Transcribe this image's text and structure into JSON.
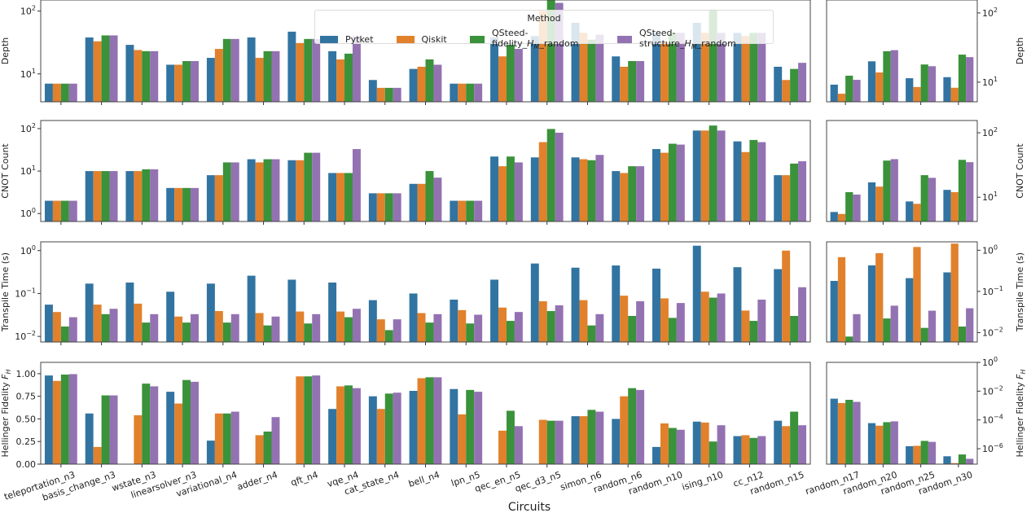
{
  "chart_data": {
    "type": "bar",
    "xlabel": "Circuits",
    "legend": {
      "title": "Method",
      "placement": "top-center"
    },
    "series_names": [
      "Pytket",
      "Qiskit",
      "QSteed-fidelity_H_M_random",
      "QSteed-structure_H_M_random"
    ],
    "colors": [
      "#3274a1",
      "#e1812c",
      "#3a923a",
      "#9372b2"
    ],
    "left_categories": [
      "teleportation_n3",
      "basis_change_n3",
      "wstate_n3",
      "linearsolver_n3",
      "variational_n4",
      "adder_n4",
      "qft_n4",
      "vqe_n4",
      "cat_state_n4",
      "bell_n4",
      "lpn_n5",
      "qec_en_n5",
      "qec_d3_n5",
      "simon_n6",
      "random_n6",
      "random_n10",
      "ising_n10",
      "cc_n12",
      "random_n15"
    ],
    "right_categories": [
      "random_n17",
      "random_n20",
      "random_n25",
      "random_n30"
    ],
    "panels": [
      {
        "metric": "Depth",
        "ylabel": "Depth",
        "scale": "log",
        "left_ylim": [
          3.6,
          150
        ],
        "right_ylim": [
          5.2,
          154
        ],
        "yticks": [
          {
            "v": 10,
            "base": "10",
            "exp": "1"
          },
          {
            "v": 100,
            "base": "10",
            "exp": "2"
          }
        ],
        "left": [
          [
            7,
            7,
            7,
            7
          ],
          [
            38,
            33,
            41,
            41
          ],
          [
            29,
            24,
            23,
            23
          ],
          [
            14,
            14,
            16,
            16
          ],
          [
            18,
            25,
            36,
            36
          ],
          [
            38,
            18,
            23,
            23
          ],
          [
            47,
            31,
            36,
            36
          ],
          [
            23,
            17,
            21,
            40
          ],
          [
            8,
            6,
            6,
            6
          ],
          [
            12,
            13,
            17,
            14
          ],
          [
            7,
            7,
            7,
            7
          ],
          [
            38,
            19,
            29,
            25
          ],
          [
            40,
            100,
            150,
            135
          ],
          [
            65,
            45,
            35,
            42
          ],
          [
            19,
            13,
            16,
            16
          ],
          [
            45,
            32,
            45,
            45
          ],
          [
            65,
            45,
            105,
            45
          ],
          [
            45,
            40,
            45,
            45
          ],
          [
            13,
            8,
            12,
            15
          ]
        ],
        "right": [
          [
            9.2,
            6.8,
            12.4,
            10.8
          ],
          [
            20,
            13.8,
            28,
            29
          ],
          [
            11.4,
            8.5,
            18,
            17
          ],
          [
            11.8,
            8.3,
            25,
            23
          ]
        ]
      },
      {
        "metric": "CNOT Count",
        "ylabel": "CNOT Count",
        "scale": "log",
        "left_ylim": [
          0.65,
          155
        ],
        "right_ylim": [
          4.2,
          155
        ],
        "yticks": [
          {
            "v": 1,
            "base": "10",
            "exp": "0"
          },
          {
            "v": 10,
            "base": "10",
            "exp": "1"
          },
          {
            "v": 100,
            "base": "10",
            "exp": "2"
          }
        ],
        "right_yticks": [
          {
            "v": 10,
            "base": "10",
            "exp": "1"
          },
          {
            "v": 100,
            "base": "10",
            "exp": "2"
          }
        ],
        "left": [
          [
            2,
            2,
            2,
            2
          ],
          [
            10,
            10,
            10,
            10
          ],
          [
            10,
            10,
            11,
            11
          ],
          [
            4,
            4,
            4,
            4
          ],
          [
            8,
            8,
            16,
            16
          ],
          [
            19,
            16,
            19,
            19
          ],
          [
            18,
            18,
            27,
            27
          ],
          [
            9,
            9,
            9,
            33
          ],
          [
            3,
            3,
            3,
            3
          ],
          [
            5,
            5,
            10,
            7
          ],
          [
            2,
            2,
            2,
            2
          ],
          [
            22,
            13,
            22,
            16
          ],
          [
            21,
            48,
            98,
            80
          ],
          [
            21,
            19,
            18,
            24
          ],
          [
            10,
            9,
            13,
            13
          ],
          [
            33,
            27,
            44,
            42
          ],
          [
            90,
            90,
            118,
            90
          ],
          [
            50,
            28,
            54,
            48
          ],
          [
            8,
            8,
            15,
            17
          ]
        ],
        "right": [
          [
            5.9,
            5.5,
            12,
            11
          ],
          [
            17,
            14.6,
            37,
            39
          ],
          [
            8.6,
            7.9,
            22,
            20
          ],
          [
            13,
            12,
            38,
            35
          ]
        ]
      },
      {
        "metric": "Transpile Time (s)",
        "ylabel": "Transpile Time (s)",
        "scale": "log",
        "left_ylim": [
          0.0074,
          1.6
        ],
        "right_ylim": [
          0.0059,
          1.6
        ],
        "yticks": [
          {
            "v": 0.01,
            "base": "10",
            "exp": "−2"
          },
          {
            "v": 0.1,
            "base": "10",
            "exp": "−1"
          },
          {
            "v": 1,
            "base": "10",
            "exp": "0"
          }
        ],
        "left": [
          [
            0.055,
            0.037,
            0.017,
            0.028
          ],
          [
            0.17,
            0.055,
            0.033,
            0.044
          ],
          [
            0.18,
            0.058,
            0.021,
            0.033
          ],
          [
            0.11,
            0.029,
            0.021,
            0.033
          ],
          [
            0.17,
            0.039,
            0.021,
            0.033
          ],
          [
            0.26,
            0.035,
            0.018,
            0.029
          ],
          [
            0.21,
            0.038,
            0.02,
            0.033
          ],
          [
            0.18,
            0.038,
            0.028,
            0.044
          ],
          [
            0.07,
            0.025,
            0.014,
            0.025
          ],
          [
            0.1,
            0.035,
            0.021,
            0.033
          ],
          [
            0.072,
            0.041,
            0.02,
            0.032
          ],
          [
            0.21,
            0.047,
            0.023,
            0.037
          ],
          [
            0.5,
            0.066,
            0.039,
            0.053
          ],
          [
            0.4,
            0.07,
            0.018,
            0.033
          ],
          [
            0.45,
            0.089,
            0.03,
            0.066
          ],
          [
            0.38,
            0.077,
            0.027,
            0.06
          ],
          [
            1.3,
            0.11,
            0.08,
            0.1
          ],
          [
            0.41,
            0.04,
            0.023,
            0.072
          ],
          [
            0.37,
            1.0,
            0.03,
            0.14
          ]
        ],
        "right": [
          [
            0.18,
            0.68,
            0.008,
            0.028
          ],
          [
            0.43,
            0.85,
            0.022,
            0.045
          ],
          [
            0.21,
            1.2,
            0.013,
            0.034
          ],
          [
            0.29,
            1.45,
            0.014,
            0.039
          ]
        ]
      },
      {
        "metric": "Hellinger Fidelity",
        "ylabel": "Hellinger Fidelity F_H",
        "scale": "linear",
        "left_ylim": [
          0,
          1.125
        ],
        "right_scale": "log",
        "right_ylim": [
          8.5e-08,
          1
        ],
        "yticks": [
          {
            "v": 0,
            "label": "0.00"
          },
          {
            "v": 0.25,
            "label": "0.25"
          },
          {
            "v": 0.5,
            "label": "0.50"
          },
          {
            "v": 0.75,
            "label": "0.75"
          },
          {
            "v": 1,
            "label": "1.00"
          }
        ],
        "right_yticks": [
          {
            "v": 1e-06,
            "base": "10",
            "exp": "−6"
          },
          {
            "v": 0.0001,
            "base": "10",
            "exp": "−4"
          },
          {
            "v": 0.01,
            "base": "10",
            "exp": "−2"
          },
          {
            "v": 1,
            "base": "10",
            "exp": "0"
          }
        ],
        "left": [
          [
            0.98,
            0.92,
            0.99,
            0.995
          ],
          [
            0.56,
            0.19,
            0.76,
            0.76
          ],
          [
            0,
            0.54,
            0.89,
            0.86
          ],
          [
            0.8,
            0.67,
            0.93,
            0.91
          ],
          [
            0.26,
            0.56,
            0.56,
            0.58
          ],
          [
            0,
            0.32,
            0.36,
            0.52
          ],
          [
            0,
            0.97,
            0.97,
            0.98
          ],
          [
            0.61,
            0.86,
            0.87,
            0.84
          ],
          [
            0.75,
            0.61,
            0.78,
            0.79
          ],
          [
            0.81,
            0.95,
            0.96,
            0.96
          ],
          [
            0.83,
            0.55,
            0.82,
            0.8
          ],
          [
            0.005,
            0.37,
            0.59,
            0.42
          ],
          [
            0,
            0.49,
            0.48,
            0.48
          ],
          [
            0.53,
            0.53,
            0.6,
            0.58
          ],
          [
            0.5,
            0.75,
            0.84,
            0.82
          ],
          [
            0.19,
            0.45,
            0.4,
            0.38
          ],
          [
            0.47,
            0.46,
            0.25,
            0.43
          ],
          [
            0.31,
            0.32,
            0.29,
            0.31
          ],
          [
            0.48,
            0.42,
            0.58,
            0.43
          ]
        ],
        "right": [
          [
            0.003,
            0.0015,
            0.0025,
            0.0018
          ],
          [
            6e-05,
            4e-05,
            7e-05,
            8e-05
          ],
          [
            1.5e-06,
            1.6e-06,
            3.5e-06,
            3e-06
          ],
          [
            3e-07,
            1e-07,
            4e-07,
            2e-07
          ]
        ]
      }
    ]
  }
}
